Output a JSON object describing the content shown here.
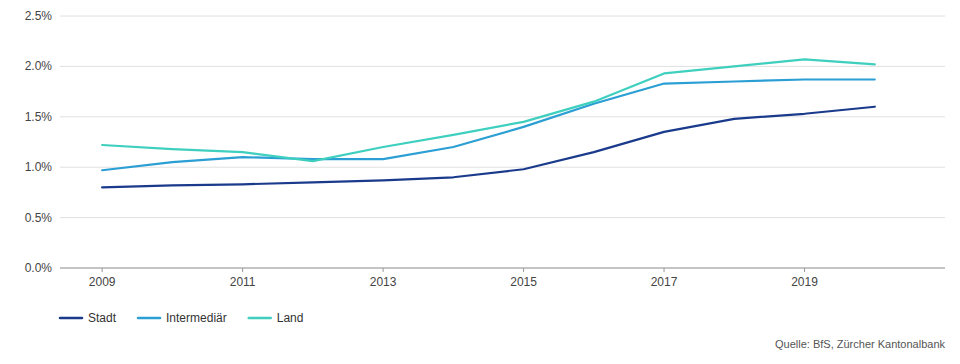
{
  "chart_data": {
    "type": "line",
    "x": [
      2009,
      2010,
      2011,
      2012,
      2013,
      2014,
      2015,
      2016,
      2017,
      2018,
      2019,
      2020
    ],
    "series": [
      {
        "name": "Stadt",
        "color": "#1a3a8c",
        "values": [
          0.008,
          0.0082,
          0.0083,
          0.0085,
          0.0087,
          0.009,
          0.0098,
          0.0115,
          0.0135,
          0.0148,
          0.0153,
          0.016
        ]
      },
      {
        "name": "Intermediär",
        "color": "#2b9fd4",
        "values": [
          0.0097,
          0.0105,
          0.011,
          0.0108,
          0.0108,
          0.012,
          0.014,
          0.0163,
          0.0183,
          0.0185,
          0.0187,
          0.0187
        ]
      },
      {
        "name": "Land",
        "color": "#3ecfbf",
        "values": [
          0.0122,
          0.0118,
          0.0115,
          0.0106,
          0.012,
          0.0132,
          0.0145,
          0.0165,
          0.0193,
          0.02,
          0.0207,
          0.0202
        ]
      }
    ],
    "xlim": [
      2008.4,
      2021.0
    ],
    "xticks": [
      2009,
      2011,
      2013,
      2015,
      2017,
      2019
    ],
    "ylim": [
      0.0,
      0.025
    ],
    "yticks": [
      {
        "value": 0.0,
        "label": "0.0%"
      },
      {
        "value": 0.005,
        "label": "0.5%"
      },
      {
        "value": 0.01,
        "label": "1.0%"
      },
      {
        "value": 0.015,
        "label": "1.5%"
      },
      {
        "value": 0.02,
        "label": "2.0%"
      },
      {
        "value": 0.025,
        "label": "2.5%"
      }
    ],
    "grid": true,
    "legend": "bottom",
    "source": "Quelle: BfS, Zürcher Kantonalbank"
  }
}
